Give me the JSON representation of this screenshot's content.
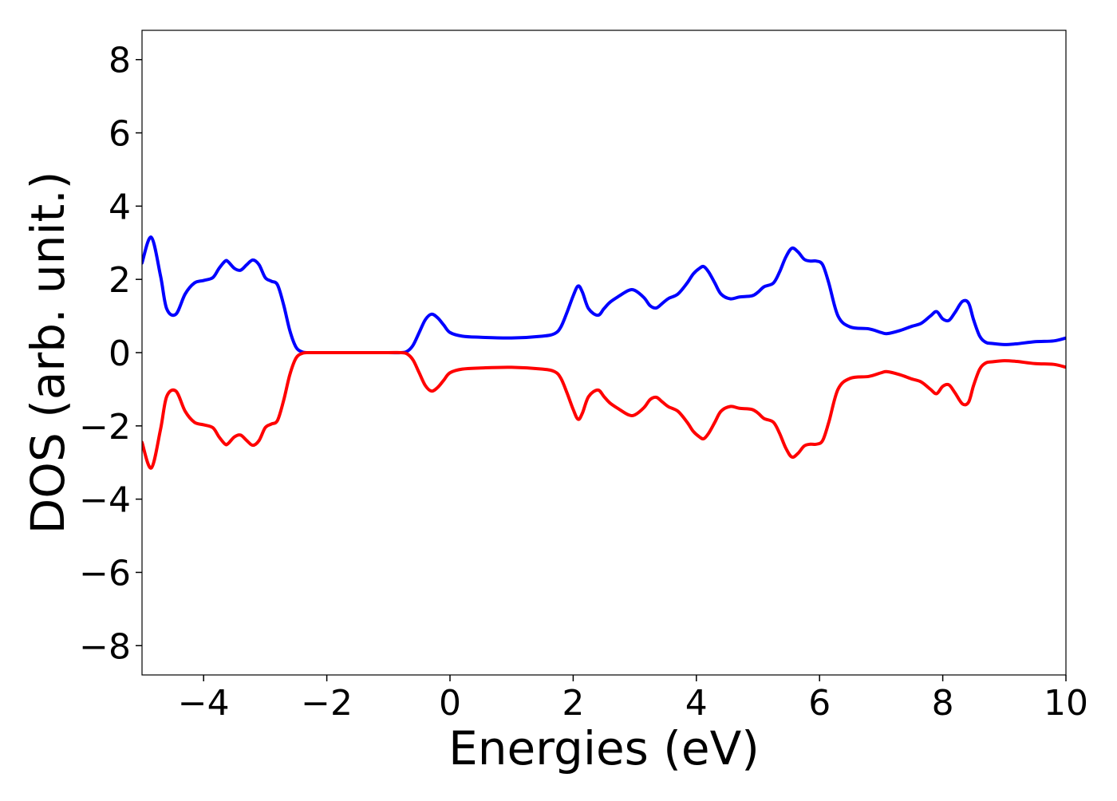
{
  "chart_data": {
    "type": "line",
    "title": "",
    "xlabel": "Energies (eV)",
    "ylabel": "DOS (arb. unit.)",
    "xlim": [
      -5,
      10
    ],
    "ylim": [
      -8.8,
      8.8
    ],
    "xticks": [
      -4,
      -2,
      0,
      2,
      4,
      6,
      8,
      10
    ],
    "yticks": [
      -8,
      -6,
      -4,
      -2,
      0,
      2,
      4,
      6,
      8
    ],
    "xtick_labels": [
      "−4",
      "−2",
      "0",
      "2",
      "4",
      "6",
      "8",
      "10"
    ],
    "ytick_labels": [
      "−8",
      "−6",
      "−4",
      "−2",
      "0",
      "2",
      "4",
      "6",
      "8"
    ],
    "grid": false,
    "legend": "none",
    "series": [
      {
        "color": "#0000ff",
        "x": [
          -5.0,
          -4.85,
          -4.7,
          -4.6,
          -4.45,
          -4.3,
          -4.15,
          -4.0,
          -3.85,
          -3.75,
          -3.65,
          -3.6,
          -3.5,
          -3.4,
          -3.3,
          -3.2,
          -3.1,
          -3.0,
          -2.9,
          -2.8,
          -2.7,
          -2.6,
          -2.5,
          -2.4,
          -2.3,
          -2.2,
          -2.0,
          -1.5,
          -1.0,
          -0.8,
          -0.7,
          -0.6,
          -0.5,
          -0.4,
          -0.3,
          -0.2,
          -0.1,
          0.0,
          0.2,
          0.5,
          1.0,
          1.5,
          1.7,
          1.8,
          1.9,
          2.0,
          2.08,
          2.15,
          2.25,
          2.4,
          2.5,
          2.6,
          2.75,
          2.9,
          3.0,
          3.15,
          3.25,
          3.35,
          3.45,
          3.55,
          3.7,
          3.85,
          3.95,
          4.05,
          4.12,
          4.2,
          4.3,
          4.4,
          4.55,
          4.7,
          4.9,
          5.0,
          5.1,
          5.25,
          5.35,
          5.45,
          5.55,
          5.65,
          5.75,
          5.85,
          5.95,
          6.05,
          6.15,
          6.3,
          6.5,
          6.8,
          7.0,
          7.1,
          7.3,
          7.5,
          7.65,
          7.8,
          7.9,
          8.0,
          8.1,
          8.2,
          8.32,
          8.42,
          8.5,
          8.6,
          8.7,
          8.8,
          9.0,
          9.2,
          9.5,
          9.8,
          10.0
        ],
        "y": [
          2.45,
          3.15,
          2.1,
          1.2,
          1.05,
          1.6,
          1.9,
          1.97,
          2.05,
          2.3,
          2.5,
          2.48,
          2.3,
          2.25,
          2.4,
          2.53,
          2.4,
          2.05,
          1.95,
          1.85,
          1.3,
          0.6,
          0.15,
          0.02,
          0.0,
          0.0,
          0.0,
          0.0,
          0.0,
          0.0,
          0.03,
          0.2,
          0.55,
          0.9,
          1.05,
          0.95,
          0.75,
          0.55,
          0.45,
          0.42,
          0.4,
          0.45,
          0.52,
          0.7,
          1.1,
          1.55,
          1.82,
          1.65,
          1.2,
          1.02,
          1.2,
          1.38,
          1.55,
          1.7,
          1.7,
          1.5,
          1.28,
          1.22,
          1.35,
          1.48,
          1.6,
          1.9,
          2.15,
          2.3,
          2.35,
          2.2,
          1.9,
          1.6,
          1.47,
          1.52,
          1.55,
          1.65,
          1.8,
          1.9,
          2.2,
          2.6,
          2.85,
          2.75,
          2.55,
          2.5,
          2.5,
          2.4,
          1.9,
          1.0,
          0.7,
          0.65,
          0.55,
          0.52,
          0.6,
          0.72,
          0.8,
          1.0,
          1.12,
          0.92,
          0.88,
          1.1,
          1.4,
          1.35,
          0.9,
          0.45,
          0.28,
          0.25,
          0.22,
          0.24,
          0.3,
          0.32,
          0.4
        ]
      },
      {
        "color": "#ff0000",
        "x": [
          -5.0,
          -4.85,
          -4.7,
          -4.6,
          -4.45,
          -4.3,
          -4.15,
          -4.0,
          -3.85,
          -3.75,
          -3.65,
          -3.6,
          -3.5,
          -3.4,
          -3.3,
          -3.2,
          -3.1,
          -3.0,
          -2.9,
          -2.8,
          -2.7,
          -2.6,
          -2.5,
          -2.4,
          -2.3,
          -2.2,
          -2.0,
          -1.5,
          -1.0,
          -0.8,
          -0.7,
          -0.6,
          -0.5,
          -0.4,
          -0.3,
          -0.2,
          -0.1,
          0.0,
          0.2,
          0.5,
          1.0,
          1.5,
          1.7,
          1.8,
          1.9,
          2.0,
          2.08,
          2.15,
          2.25,
          2.4,
          2.5,
          2.6,
          2.75,
          2.9,
          3.0,
          3.15,
          3.25,
          3.35,
          3.45,
          3.55,
          3.7,
          3.85,
          3.95,
          4.05,
          4.12,
          4.2,
          4.3,
          4.4,
          4.55,
          4.7,
          4.9,
          5.0,
          5.1,
          5.25,
          5.35,
          5.45,
          5.55,
          5.65,
          5.75,
          5.85,
          5.95,
          6.05,
          6.15,
          6.3,
          6.5,
          6.8,
          7.0,
          7.1,
          7.3,
          7.5,
          7.65,
          7.8,
          7.9,
          8.0,
          8.1,
          8.2,
          8.32,
          8.42,
          8.5,
          8.6,
          8.7,
          8.8,
          9.0,
          9.2,
          9.5,
          9.8,
          10.0
        ],
        "y": [
          -2.45,
          -3.15,
          -2.1,
          -1.2,
          -1.05,
          -1.6,
          -1.9,
          -1.97,
          -2.05,
          -2.3,
          -2.5,
          -2.48,
          -2.3,
          -2.25,
          -2.4,
          -2.53,
          -2.4,
          -2.05,
          -1.95,
          -1.85,
          -1.3,
          -0.6,
          -0.15,
          -0.02,
          0.0,
          0.0,
          0.0,
          0.0,
          0.0,
          0.0,
          -0.03,
          -0.2,
          -0.55,
          -0.9,
          -1.05,
          -0.95,
          -0.75,
          -0.55,
          -0.45,
          -0.42,
          -0.4,
          -0.45,
          -0.52,
          -0.7,
          -1.1,
          -1.55,
          -1.82,
          -1.65,
          -1.2,
          -1.02,
          -1.2,
          -1.38,
          -1.55,
          -1.7,
          -1.7,
          -1.5,
          -1.28,
          -1.22,
          -1.35,
          -1.48,
          -1.6,
          -1.9,
          -2.15,
          -2.3,
          -2.35,
          -2.2,
          -1.9,
          -1.6,
          -1.47,
          -1.52,
          -1.55,
          -1.65,
          -1.8,
          -1.9,
          -2.2,
          -2.6,
          -2.85,
          -2.75,
          -2.55,
          -2.5,
          -2.5,
          -2.4,
          -1.9,
          -1.0,
          -0.7,
          -0.65,
          -0.55,
          -0.52,
          -0.6,
          -0.72,
          -0.8,
          -1.0,
          -1.12,
          -0.92,
          -0.88,
          -1.1,
          -1.4,
          -1.35,
          -0.9,
          -0.45,
          -0.28,
          -0.25,
          -0.22,
          -0.24,
          -0.3,
          -0.32,
          -0.4
        ]
      }
    ]
  }
}
